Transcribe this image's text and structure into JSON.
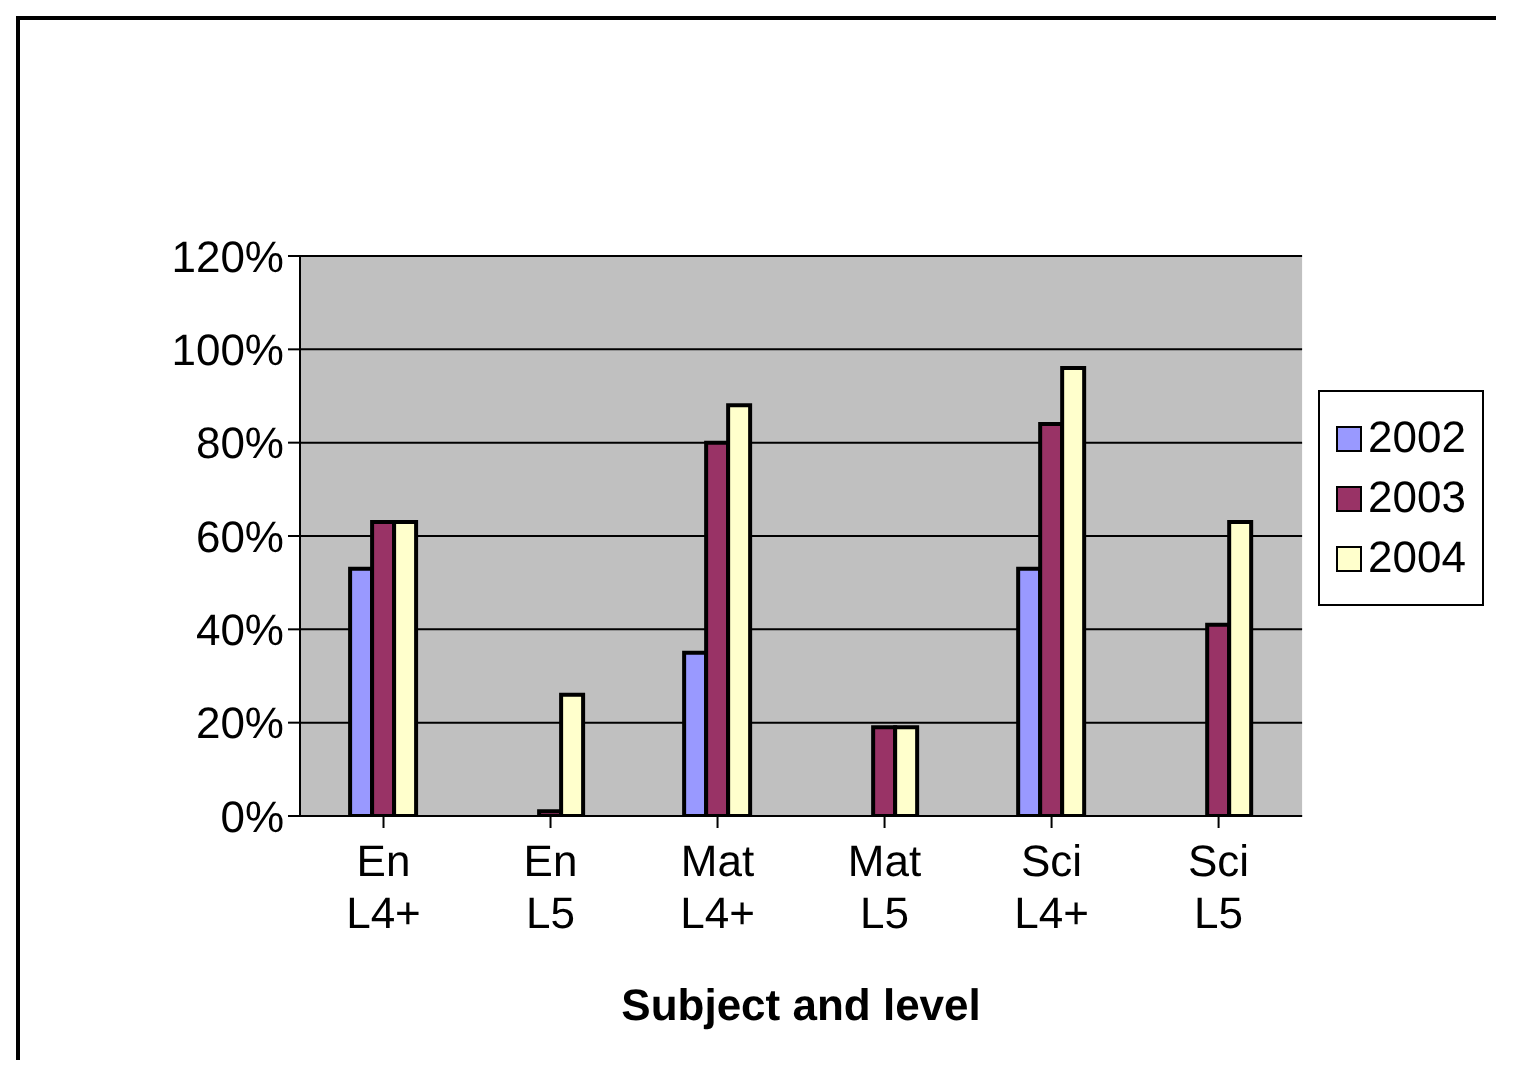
{
  "chart_data": {
    "type": "bar",
    "xlabel": "Subject and level",
    "categories": [
      "En L4+",
      "En L5",
      "Mat L4+",
      "Mat L5",
      "Sci L4+",
      "Sci L5"
    ],
    "series": [
      {
        "name": "2002",
        "color": "#9999ff",
        "values": [
          53,
          null,
          35,
          null,
          53,
          null
        ]
      },
      {
        "name": "2003",
        "color": "#993366",
        "values": [
          63,
          1,
          80,
          19,
          84,
          41
        ]
      },
      {
        "name": "2004",
        "color": "#ffffcc",
        "values": [
          63,
          26,
          88,
          19,
          96,
          63
        ]
      }
    ],
    "ylim": [
      0,
      120
    ],
    "yticks": [
      {
        "value": 0,
        "label": "0%"
      },
      {
        "value": 20,
        "label": "20%"
      },
      {
        "value": 40,
        "label": "40%"
      },
      {
        "value": 60,
        "label": "60%"
      },
      {
        "value": 80,
        "label": "80%"
      },
      {
        "value": 100,
        "label": "100%"
      },
      {
        "value": 120,
        "label": "120%"
      }
    ],
    "grid": "y",
    "legend": "right"
  }
}
